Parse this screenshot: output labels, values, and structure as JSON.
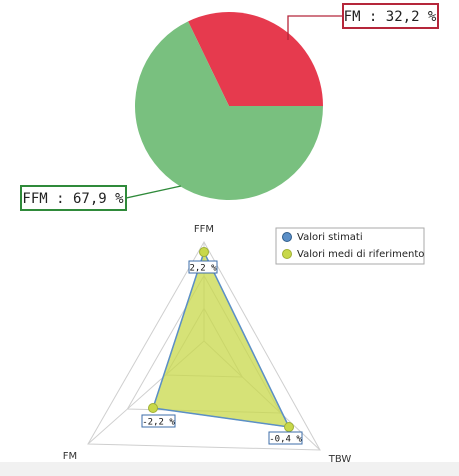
{
  "chart_data": [
    {
      "type": "pie",
      "slices": [
        {
          "label": "FM",
          "value": 32.2,
          "display": "FM : 32,2 %",
          "color": "#e63a4e"
        },
        {
          "label": "FFM",
          "value": 67.9,
          "display": "FFM : 67,9 %",
          "color": "#79c07f"
        }
      ],
      "callout_colors": {
        "FM": "#b5263a",
        "FFM": "#2f8a3a"
      }
    },
    {
      "type": "radar",
      "axes": [
        "FFM",
        "TBW",
        "FM"
      ],
      "series": [
        {
          "name": "Valori stimati",
          "values": [
            2.2,
            -0.4,
            -2.2
          ],
          "color": "#5b8fc7"
        },
        {
          "name": "Valori medi di riferimento",
          "values": [
            0,
            0,
            0
          ],
          "color": "#c8d84a"
        }
      ],
      "value_labels": [
        "2,2 %",
        "-0,4 %",
        "-2,2 %"
      ],
      "legend_position": "top-right"
    }
  ]
}
